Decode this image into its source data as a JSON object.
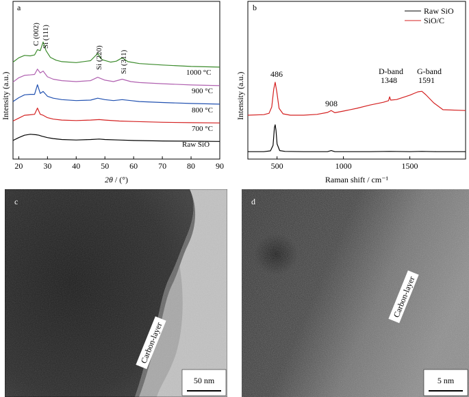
{
  "panels": {
    "a": "a",
    "b": "b",
    "c": "c",
    "d": "d"
  },
  "chart_data": [
    {
      "type": "line",
      "panel": "a",
      "xlabel": "2θ / (°)",
      "ylabel": "Intensity (a.u.)",
      "xlim": [
        18,
        90
      ],
      "x_ticks": [
        "20",
        "30",
        "40",
        "50",
        "60",
        "70",
        "80",
        "90"
      ],
      "series": [
        {
          "name": "Raw SiO",
          "color": "#000000",
          "offset": 0,
          "x": [
            18,
            20,
            22,
            24,
            26,
            27,
            28,
            30,
            32,
            35,
            40,
            45,
            48,
            50,
            55,
            60,
            70,
            80,
            90
          ],
          "y": [
            0.15,
            0.45,
            0.7,
            0.8,
            0.75,
            0.7,
            0.6,
            0.45,
            0.35,
            0.25,
            0.2,
            0.25,
            0.3,
            0.25,
            0.2,
            0.15,
            0.1,
            0.08,
            0.05
          ]
        },
        {
          "name": "700 °C",
          "color": "#d42020",
          "offset": 1,
          "x": [
            18,
            20,
            22,
            24,
            25.5,
            26.5,
            27.5,
            28.5,
            30,
            32,
            35,
            40,
            45,
            48,
            50,
            55,
            60,
            70,
            80,
            90
          ],
          "y": [
            0.25,
            0.55,
            0.85,
            0.9,
            0.95,
            1.6,
            0.95,
            0.85,
            0.6,
            0.45,
            0.35,
            0.3,
            0.35,
            0.4,
            0.35,
            0.25,
            0.2,
            0.12,
            0.08,
            0.05
          ]
        },
        {
          "name": "800 °C",
          "color": "#2050b0",
          "offset": 2,
          "x": [
            18,
            20,
            22,
            24,
            25.5,
            26.5,
            27.5,
            28.5,
            30,
            32,
            35,
            40,
            45,
            47.5,
            50,
            53,
            56,
            59,
            62,
            70,
            80,
            90
          ],
          "y": [
            0.35,
            0.75,
            1.05,
            1.1,
            1.1,
            2.1,
            1.2,
            1.4,
            0.9,
            0.7,
            0.55,
            0.45,
            0.5,
            0.7,
            0.55,
            0.45,
            0.55,
            0.45,
            0.35,
            0.25,
            0.15,
            0.08
          ]
        },
        {
          "name": "900 °C",
          "color": "#b060b0",
          "offset": 3,
          "x": [
            18,
            20,
            22,
            24,
            25.5,
            26.5,
            27.5,
            28.5,
            30,
            32,
            35,
            40,
            45,
            47.5,
            50,
            53,
            56,
            59,
            62,
            70,
            80,
            90
          ],
          "y": [
            0.45,
            0.9,
            1.15,
            1.2,
            1.25,
            1.8,
            1.4,
            1.6,
            1.0,
            0.75,
            0.6,
            0.5,
            0.6,
            0.95,
            0.65,
            0.5,
            0.75,
            0.5,
            0.4,
            0.28,
            0.15,
            0.08
          ]
        },
        {
          "name": "1000 °C",
          "color": "#3a8a2a",
          "offset": 4,
          "x": [
            18,
            20,
            22,
            24,
            25.5,
            26.5,
            27.5,
            28.5,
            29.5,
            31,
            33,
            35,
            40,
            45,
            47.5,
            49,
            52,
            54,
            56,
            58,
            62,
            70,
            80,
            90
          ],
          "y": [
            0.6,
            1.05,
            1.3,
            1.25,
            1.35,
            1.9,
            1.8,
            2.7,
            1.8,
            1.1,
            0.8,
            0.65,
            0.55,
            0.75,
            1.5,
            0.85,
            0.6,
            0.7,
            1.05,
            0.65,
            0.45,
            0.3,
            0.15,
            0.08
          ]
        }
      ],
      "annotations": [
        "C (002)",
        "Si (111)",
        "Si (220)",
        "Si (311)"
      ],
      "legend_labels": [
        "1000 °C",
        "900 °C",
        "800 °C",
        "700 °C",
        "Raw SiO"
      ]
    },
    {
      "type": "line",
      "panel": "b",
      "xlabel": "Raman shift / cm⁻¹",
      "ylabel": "Intensity (a.u.)",
      "xlim": [
        280,
        1920
      ],
      "x_ticks": [
        "500",
        "1000",
        "1500"
      ],
      "legend": "top-right",
      "series": [
        {
          "name": "Raw SiO",
          "color": "#000000",
          "offset": 0,
          "x": [
            280,
            400,
            450,
            470,
            480,
            486,
            492,
            500,
            520,
            560,
            700,
            880,
            908,
            935,
            1000,
            1200,
            1348,
            1500,
            1591,
            1700,
            1920
          ],
          "y": [
            0.02,
            0.02,
            0.05,
            0.25,
            0.9,
            1.0,
            0.8,
            0.3,
            0.06,
            0.03,
            0.02,
            0.02,
            0.06,
            0.02,
            0.02,
            0.02,
            0.03,
            0.02,
            0.03,
            0.02,
            0.02
          ]
        },
        {
          "name": "SiO/C",
          "color": "#d42020",
          "offset": 1,
          "x": [
            280,
            400,
            440,
            460,
            475,
            486,
            498,
            515,
            545,
            600,
            700,
            800,
            880,
            908,
            935,
            1000,
            1100,
            1200,
            1300,
            1340,
            1348,
            1356,
            1400,
            1500,
            1560,
            1591,
            1620,
            1680,
            1750,
            1920
          ],
          "y": [
            0.15,
            0.17,
            0.22,
            0.45,
            1.1,
            1.35,
            1.0,
            0.4,
            0.2,
            0.15,
            0.15,
            0.18,
            0.25,
            0.32,
            0.24,
            0.3,
            0.4,
            0.52,
            0.62,
            0.68,
            0.82,
            0.7,
            0.72,
            0.88,
            1.0,
            1.02,
            0.9,
            0.6,
            0.35,
            0.32
          ]
        }
      ],
      "annotations": [
        "486",
        "908",
        "D-band",
        "1348",
        "G-band",
        "1591"
      ]
    }
  ],
  "tem": {
    "c": {
      "label": "Carbon-layer",
      "scale_bar": "50 nm"
    },
    "d": {
      "label": "Carbon-layer",
      "scale_bar": "5 nm"
    }
  }
}
